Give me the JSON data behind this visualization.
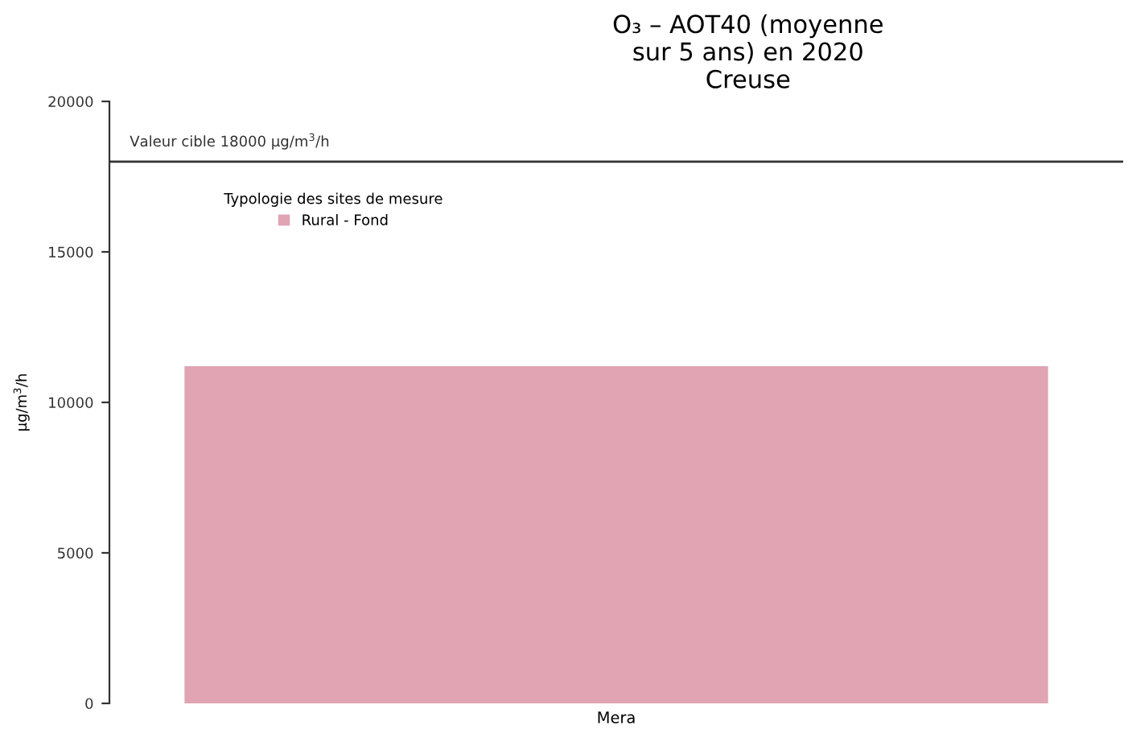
{
  "chart_data": {
    "type": "bar",
    "title": "O₃ – AOT40 (moyenne\nsur 5 ans) en 2020\nCreuse",
    "ylabel": "µg/m$^{3}$/h",
    "categories": [
      "Mera"
    ],
    "series": [
      {
        "name": "Rural - Fond",
        "color": "#e0a4b2",
        "values": [
          11200
        ]
      }
    ],
    "legend_title": "Typologie des sites de mesure",
    "legend": "top left",
    "ylim": [
      0,
      20000
    ],
    "yticks": [
      0,
      5000,
      10000,
      15000,
      20000
    ],
    "grid": false,
    "ref_lines": [
      {
        "axis": "y",
        "value": 18000,
        "label": "Valeur cible 18000 µg/m$^{3}$/h",
        "color": "#333333"
      }
    ]
  }
}
